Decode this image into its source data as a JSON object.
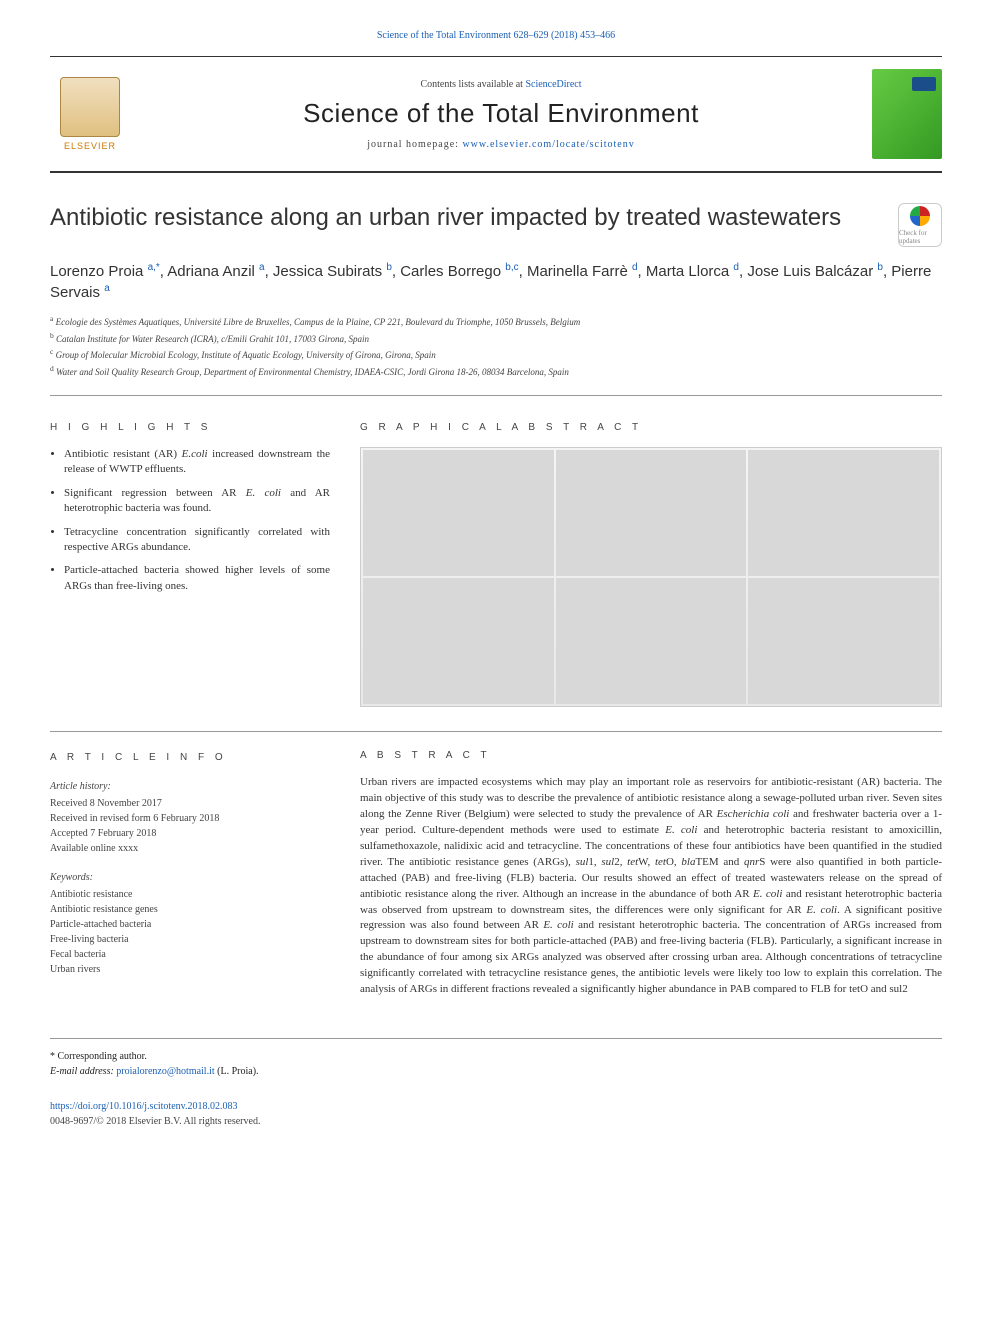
{
  "top_citation": "Science of the Total Environment 628–629 (2018) 453–466",
  "banner": {
    "contents_prefix": "Contents lists available at ",
    "contents_link": "ScienceDirect",
    "journal": "Science of the Total Environment",
    "homepage_prefix": "journal homepage: ",
    "homepage_link": "www.elsevier.com/locate/scitotenv",
    "publisher": "ELSEVIER"
  },
  "updates_badge": "Check for updates",
  "title": "Antibiotic resistance along an urban river impacted by treated wastewaters",
  "authors_html": "Lorenzo Proia <sup>a,*</sup>, Adriana Anzil <sup>a</sup>, Jessica Subirats <sup>b</sup>, Carles Borrego <sup>b,c</sup>, Marinella Farrè <sup>d</sup>, Marta Llorca <sup>d</sup>, Jose Luis Balcázar <sup>b</sup>, Pierre Servais <sup>a</sup>",
  "affiliations": [
    {
      "key": "a",
      "text": "Ecologie des Systèmes Aquatiques, Université Libre de Bruxelles, Campus de la Plaine, CP 221, Boulevard du Triomphe, 1050 Brussels, Belgium"
    },
    {
      "key": "b",
      "text": "Catalan Institute for Water Research (ICRA), c/Emili Grahit 101, 17003 Girona, Spain"
    },
    {
      "key": "c",
      "text": "Group of Molecular Microbial Ecology, Institute of Aquatic Ecology, University of Girona, Girona, Spain"
    },
    {
      "key": "d",
      "text": "Water and Soil Quality Research Group, Department of Environmental Chemistry, IDAEA-CSIC, Jordi Girona 18-26, 08034 Barcelona, Spain"
    }
  ],
  "highlights_hdr": "H I G H L I G H T S",
  "graphical_hdr": "G R A P H I C A L  A B S T R A C T",
  "highlights": [
    "Antibiotic resistant (AR) <i>E.coli</i> increased downstream the release of WWTP effluents.",
    "Significant regression between AR <i>E. coli</i> and AR heterotrophic bacteria was found.",
    "Tetracycline concentration significantly correlated with respective ARGs abundance.",
    "Particle-attached bacteria showed higher levels of some ARGs than free-living ones."
  ],
  "article_info_hdr": "A R T I C L E  I N F O",
  "abstract_hdr": "A B S T R A C T",
  "history_hdr": "Article history:",
  "history": [
    "Received 8 November 2017",
    "Received in revised form 6 February 2018",
    "Accepted 7 February 2018",
    "Available online xxxx"
  ],
  "keywords_hdr": "Keywords:",
  "keywords": [
    "Antibiotic resistance",
    "Antibiotic resistance genes",
    "Particle-attached bacteria",
    "Free-living bacteria",
    "Fecal bacteria",
    "Urban rivers"
  ],
  "abstract_html": "Urban rivers are impacted ecosystems which may play an important role as reservoirs for antibiotic-resistant (AR) bacteria. The main objective of this study was to describe the prevalence of antibiotic resistance along a sewage-polluted urban river. Seven sites along the Zenne River (Belgium) were selected to study the prevalence of AR <i>Escherichia coli</i> and freshwater bacteria over a 1-year period. Culture-dependent methods were used to estimate <i>E. coli</i> and heterotrophic bacteria resistant to amoxicillin, sulfamethoxazole, nalidixic acid and tetracycline. The concentrations of these four antibiotics have been quantified in the studied river. The antibiotic resistance genes (ARGs), <i>sul</i>1, <i>sul</i>2, <i>tet</i>W, <i>tet</i>O, <i>bla</i>TEM and <i>qnr</i>S were also quantified in both particle-attached (PAB) and free-living (FLB) bacteria. Our results showed an effect of treated wastewaters release on the spread of antibiotic resistance along the river. Although an increase in the abundance of both AR <i>E. coli</i> and resistant heterotrophic bacteria was observed from upstream to downstream sites, the differences were only significant for AR <i>E. coli</i>. A significant positive regression was also found between AR <i>E. coli</i> and resistant heterotrophic bacteria. The concentration of ARGs increased from upstream to downstream sites for both particle-attached (PAB) and free-living bacteria (FLB). Particularly, a significant increase in the abundance of four among six ARGs analyzed was observed after crossing urban area. Although concentrations of tetracycline significantly correlated with tetracycline resistance genes, the antibiotic levels were likely too low to explain this correlation. The analysis of ARGs in different fractions revealed a significantly higher abundance in PAB compared to FLB for tetO and sul2",
  "corresponding": {
    "label": "* Corresponding author.",
    "email_label": "E-mail address:",
    "email": "proialorenzo@hotmail.it",
    "name": "(L. Proia)."
  },
  "doi": "https://doi.org/10.1016/j.scitotenv.2018.02.083",
  "copyright": "0048-9697/© 2018 Elsevier B.V. All rights reserved.",
  "colors": {
    "link": "#1a5fb4",
    "text": "#333333",
    "border": "#999999",
    "banner_border": "#333333"
  }
}
